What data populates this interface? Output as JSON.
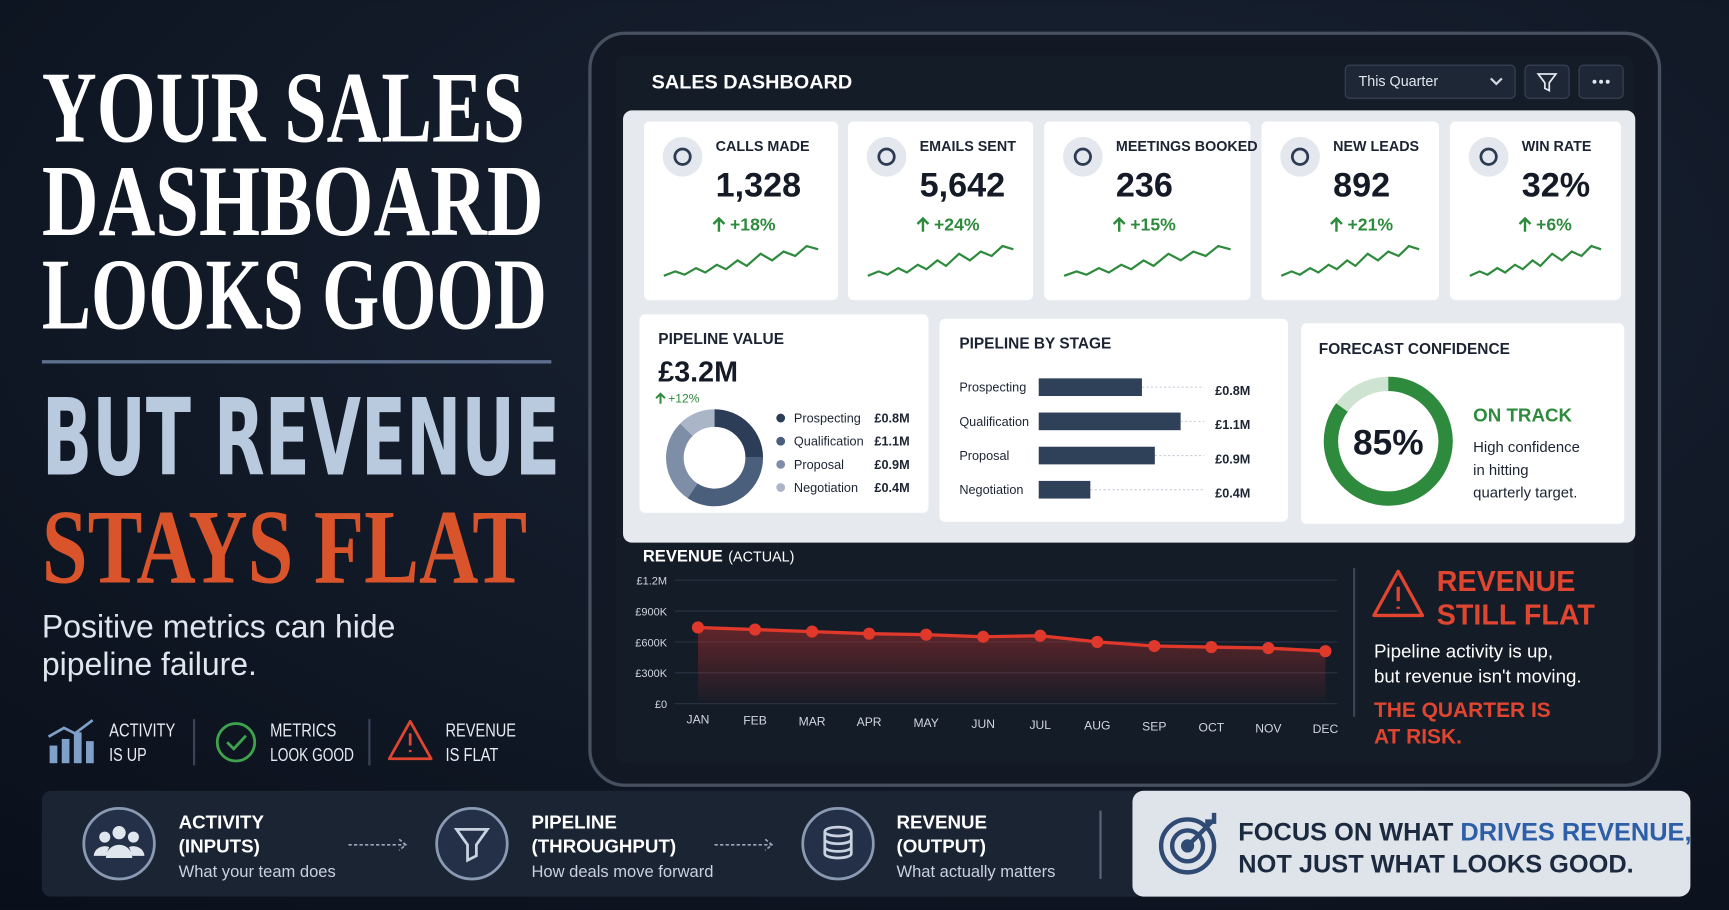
{
  "headline": {
    "lines": [
      "YOUR SALES",
      "DASHBOARD",
      "LOOKS GOOD"
    ],
    "contrast": "BUT REVENUE",
    "punch": "STAYS FLAT",
    "subtitle_lines": [
      "Positive metrics can hide",
      "pipeline failure."
    ]
  },
  "signals": [
    {
      "line1": "ACTIVITY",
      "line2": "IS UP"
    },
    {
      "line1": "METRICS",
      "line2": "LOOK GOOD"
    },
    {
      "line1": "REVENUE",
      "line2": "IS FLAT"
    }
  ],
  "flow": [
    {
      "title": "ACTIVITY",
      "subtitle": "(INPUTS)",
      "description": "What your team does"
    },
    {
      "title": "PIPELINE",
      "subtitle": "(THROUGHPUT)",
      "description": "How deals move forward"
    },
    {
      "title": "REVENUE",
      "subtitle": "(OUTPUT)",
      "description": "What actually matters"
    }
  ],
  "focus": {
    "prefix": "FOCUS ON WHAT ",
    "highlight": "DRIVES REVENUE,",
    "line2": "NOT JUST WHAT LOOKS GOOD."
  },
  "dashboard": {
    "title": "SALES DASHBOARD",
    "period": "This Quarter",
    "kpis": [
      {
        "label": "CALLS MADE",
        "value": "1,328",
        "change": "+18%"
      },
      {
        "label": "EMAILS SENT",
        "value": "5,642",
        "change": "+24%"
      },
      {
        "label": "MEETINGS BOOKED",
        "value": "236",
        "change": "+15%"
      },
      {
        "label": "NEW LEADS",
        "value": "892",
        "change": "+21%"
      },
      {
        "label": "WIN RATE",
        "value": "32%",
        "change": "+6%"
      }
    ],
    "pipeline_value": {
      "title": "PIPELINE VALUE",
      "value": "£3.2M",
      "change": "+12%",
      "segments": [
        {
          "name": "Prospecting",
          "value": 0.8,
          "label": "£0.8M"
        },
        {
          "name": "Qualification",
          "value": 1.1,
          "label": "£1.1M"
        },
        {
          "name": "Proposal",
          "value": 0.9,
          "label": "£0.9M"
        },
        {
          "name": "Negotiation",
          "value": 0.4,
          "label": "£0.4M"
        }
      ]
    },
    "pipeline_by_stage": {
      "title": "PIPELINE BY STAGE",
      "stages": [
        {
          "name": "Prospecting",
          "value": 0.8,
          "label": "£0.8M"
        },
        {
          "name": "Qualification",
          "value": 1.1,
          "label": "£1.1M"
        },
        {
          "name": "Proposal",
          "value": 0.9,
          "label": "£0.9M"
        },
        {
          "name": "Negotiation",
          "value": 0.4,
          "label": "£0.4M"
        }
      ]
    },
    "forecast": {
      "title": "FORECAST CONFIDENCE",
      "value": 85,
      "label": "85%",
      "status": "ON TRACK",
      "description": [
        "High confidence",
        "in hitting",
        "quarterly target."
      ]
    },
    "alert": {
      "title": [
        "REVENUE",
        "STILL FLAT"
      ],
      "message": [
        "Pipeline activity is up,",
        "but revenue isn't moving."
      ],
      "warning": [
        "THE QUARTER IS",
        "AT RISK."
      ]
    }
  },
  "chart_data": {
    "type": "line",
    "title": "REVENUE",
    "subtitle": "(ACTUAL)",
    "categories": [
      "JAN",
      "FEB",
      "MAR",
      "APR",
      "MAY",
      "JUN",
      "JUL",
      "AUG",
      "SEP",
      "OCT",
      "NOV",
      "DEC"
    ],
    "values": [
      740000,
      720000,
      700000,
      680000,
      670000,
      650000,
      660000,
      600000,
      560000,
      550000,
      540000,
      510000
    ],
    "color": "#e0392b",
    "ylim": [
      0,
      1200000
    ],
    "yticks": [
      {
        "value": 0,
        "label": "£0"
      },
      {
        "value": 300000,
        "label": "£300K"
      },
      {
        "value": 600000,
        "label": "£600K"
      },
      {
        "value": 900000,
        "label": "£900K"
      },
      {
        "value": 1200000,
        "label": "£1.2M"
      }
    ],
    "grid": true
  }
}
